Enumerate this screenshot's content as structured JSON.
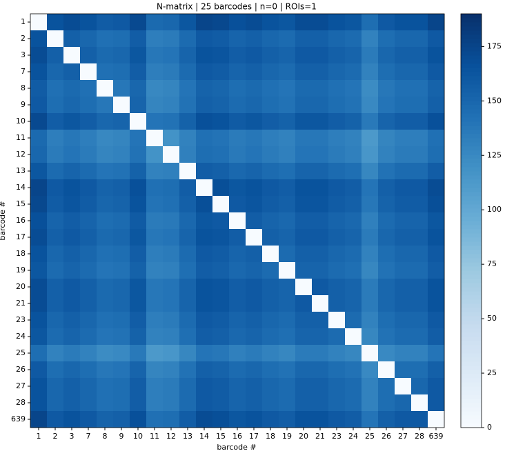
{
  "chart_data": {
    "type": "heatmap",
    "title": "N-matrix | 25 barcodes | n=0 | ROIs=1",
    "xlabel": "barcode #",
    "ylabel": "barcode #",
    "categories": [
      "1",
      "2",
      "3",
      "7",
      "8",
      "9",
      "10",
      "11",
      "12",
      "13",
      "14",
      "15",
      "16",
      "17",
      "18",
      "19",
      "20",
      "21",
      "23",
      "24",
      "25",
      "26",
      "27",
      "28",
      "639"
    ],
    "colormap": "Blues",
    "clim": [
      0,
      190
    ],
    "cticks": [
      0,
      25,
      50,
      75,
      100,
      125,
      150,
      175
    ],
    "z": [
      [
        0,
        165,
        170,
        165,
        158,
        160,
        172,
        148,
        150,
        162,
        175,
        173,
        167,
        170,
        165,
        162,
        170,
        170,
        165,
        162,
        145,
        160,
        165,
        165,
        175
      ],
      [
        165,
        0,
        155,
        150,
        143,
        145,
        157,
        133,
        135,
        147,
        160,
        158,
        152,
        155,
        150,
        147,
        155,
        155,
        150,
        147,
        130,
        145,
        150,
        150,
        160
      ],
      [
        170,
        155,
        0,
        155,
        148,
        150,
        162,
        138,
        140,
        152,
        165,
        163,
        157,
        160,
        155,
        152,
        160,
        160,
        155,
        152,
        135,
        150,
        155,
        155,
        165
      ],
      [
        165,
        150,
        155,
        0,
        143,
        145,
        157,
        133,
        135,
        147,
        160,
        158,
        152,
        155,
        150,
        147,
        155,
        155,
        150,
        147,
        130,
        145,
        150,
        150,
        160
      ],
      [
        158,
        143,
        148,
        143,
        0,
        138,
        150,
        126,
        128,
        140,
        153,
        151,
        145,
        148,
        143,
        140,
        148,
        148,
        143,
        140,
        123,
        138,
        143,
        143,
        153
      ],
      [
        160,
        145,
        150,
        145,
        138,
        0,
        152,
        128,
        130,
        142,
        155,
        153,
        147,
        150,
        145,
        142,
        150,
        150,
        145,
        142,
        125,
        140,
        145,
        145,
        155
      ],
      [
        172,
        157,
        162,
        157,
        150,
        152,
        0,
        140,
        142,
        154,
        167,
        165,
        159,
        162,
        157,
        154,
        162,
        162,
        157,
        154,
        137,
        152,
        157,
        157,
        167
      ],
      [
        148,
        133,
        138,
        133,
        126,
        128,
        140,
        0,
        118,
        130,
        143,
        141,
        135,
        138,
        133,
        130,
        138,
        138,
        133,
        130,
        113,
        128,
        133,
        133,
        143
      ],
      [
        150,
        135,
        140,
        135,
        128,
        130,
        142,
        118,
        0,
        132,
        145,
        143,
        137,
        140,
        135,
        132,
        140,
        140,
        135,
        132,
        115,
        130,
        135,
        135,
        145
      ],
      [
        162,
        147,
        152,
        147,
        140,
        142,
        154,
        130,
        132,
        0,
        157,
        155,
        149,
        152,
        147,
        144,
        152,
        152,
        147,
        144,
        127,
        142,
        147,
        147,
        157
      ],
      [
        175,
        160,
        165,
        160,
        153,
        155,
        167,
        143,
        145,
        157,
        0,
        168,
        162,
        165,
        160,
        157,
        165,
        165,
        160,
        157,
        140,
        155,
        160,
        160,
        170
      ],
      [
        173,
        158,
        163,
        158,
        151,
        153,
        165,
        141,
        143,
        155,
        168,
        0,
        160,
        163,
        158,
        155,
        163,
        163,
        158,
        155,
        138,
        153,
        158,
        158,
        168
      ],
      [
        167,
        152,
        157,
        152,
        145,
        147,
        159,
        135,
        137,
        149,
        162,
        160,
        0,
        157,
        152,
        149,
        157,
        157,
        152,
        149,
        132,
        147,
        152,
        152,
        162
      ],
      [
        170,
        155,
        160,
        155,
        148,
        150,
        162,
        138,
        140,
        152,
        165,
        163,
        157,
        0,
        155,
        152,
        160,
        160,
        155,
        152,
        135,
        150,
        155,
        155,
        165
      ],
      [
        165,
        150,
        155,
        150,
        143,
        145,
        157,
        133,
        135,
        147,
        160,
        158,
        152,
        155,
        0,
        147,
        155,
        155,
        150,
        147,
        130,
        145,
        150,
        150,
        160
      ],
      [
        162,
        147,
        152,
        147,
        140,
        142,
        154,
        130,
        132,
        144,
        157,
        155,
        149,
        152,
        147,
        0,
        152,
        152,
        147,
        144,
        127,
        142,
        147,
        147,
        157
      ],
      [
        170,
        155,
        160,
        155,
        148,
        150,
        162,
        138,
        140,
        152,
        165,
        163,
        157,
        160,
        155,
        152,
        0,
        160,
        155,
        152,
        135,
        150,
        155,
        155,
        165
      ],
      [
        170,
        155,
        160,
        155,
        148,
        150,
        162,
        138,
        140,
        152,
        165,
        163,
        157,
        160,
        155,
        152,
        160,
        0,
        155,
        152,
        135,
        150,
        155,
        155,
        165
      ],
      [
        165,
        150,
        155,
        150,
        143,
        145,
        157,
        133,
        135,
        147,
        160,
        158,
        152,
        155,
        150,
        147,
        155,
        155,
        0,
        147,
        130,
        145,
        150,
        150,
        160
      ],
      [
        162,
        147,
        152,
        147,
        140,
        142,
        154,
        130,
        132,
        144,
        157,
        155,
        149,
        152,
        147,
        144,
        152,
        152,
        147,
        0,
        127,
        142,
        147,
        147,
        157
      ],
      [
        145,
        130,
        135,
        130,
        123,
        125,
        137,
        113,
        115,
        127,
        140,
        138,
        132,
        135,
        130,
        127,
        135,
        135,
        130,
        127,
        0,
        125,
        130,
        130,
        140
      ],
      [
        160,
        145,
        150,
        145,
        138,
        140,
        152,
        128,
        130,
        142,
        155,
        153,
        147,
        150,
        145,
        142,
        150,
        150,
        145,
        142,
        125,
        0,
        145,
        145,
        155
      ],
      [
        165,
        150,
        155,
        150,
        143,
        145,
        157,
        133,
        135,
        147,
        160,
        158,
        152,
        155,
        150,
        147,
        155,
        155,
        150,
        147,
        130,
        145,
        0,
        150,
        160
      ],
      [
        165,
        150,
        155,
        150,
        143,
        145,
        157,
        133,
        135,
        147,
        160,
        158,
        152,
        155,
        150,
        147,
        155,
        155,
        150,
        147,
        130,
        145,
        150,
        0,
        160
      ],
      [
        175,
        160,
        165,
        160,
        153,
        155,
        167,
        143,
        145,
        157,
        170,
        168,
        162,
        165,
        160,
        157,
        165,
        165,
        160,
        157,
        140,
        155,
        160,
        160,
        0
      ]
    ]
  }
}
